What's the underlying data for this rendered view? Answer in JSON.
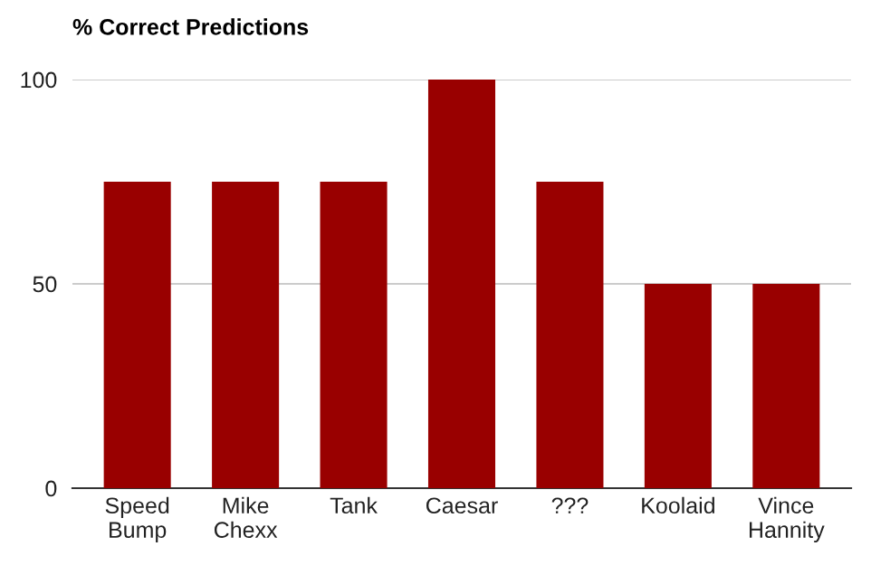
{
  "chart_data": {
    "type": "bar",
    "title": "% Correct Predictions",
    "categories": [
      "Speed\nBump",
      "Mike\nChexx",
      "Tank",
      "Caesar",
      "???",
      "Koolaid",
      "Vince\nHannity"
    ],
    "values": [
      75,
      75,
      75,
      100,
      75,
      50,
      50
    ],
    "color": "#990000",
    "ylim": [
      0,
      100
    ],
    "yticks": [
      0,
      50,
      100
    ],
    "grid": "y",
    "legend": false
  }
}
